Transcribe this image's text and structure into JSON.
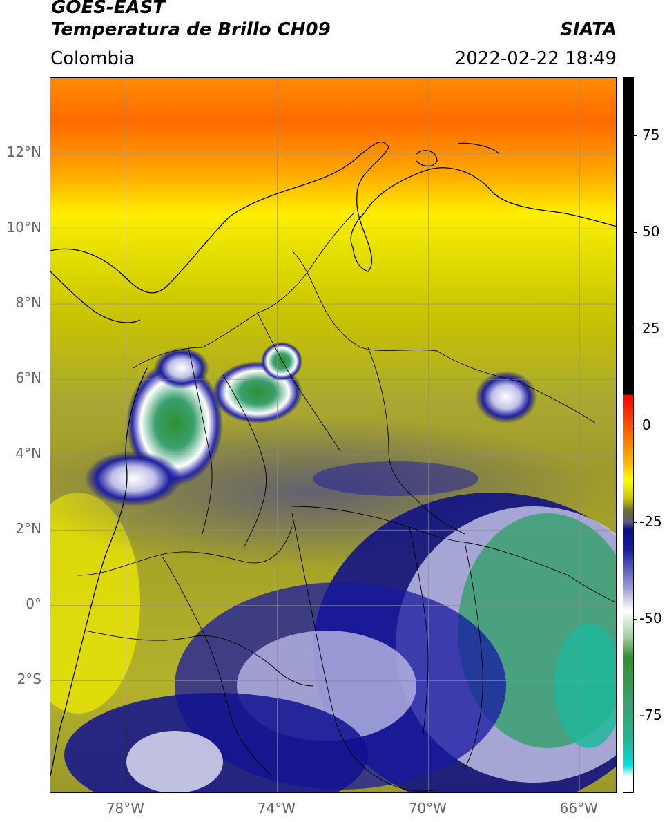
{
  "header": {
    "satellite": "GOES-EAST",
    "product": "Temperatura de Brillo CH09",
    "organization": "SIATA",
    "region": "Colombia",
    "timestamp": "2022-02-22 18:49"
  },
  "map": {
    "lon_range": [
      -80,
      -65
    ],
    "lat_range": [
      -5,
      14
    ],
    "lat_ticks": [
      {
        "value": 12,
        "label": "12°N"
      },
      {
        "value": 10,
        "label": "10°N"
      },
      {
        "value": 8,
        "label": "8°N"
      },
      {
        "value": 6,
        "label": "6°N"
      },
      {
        "value": 4,
        "label": "4°N"
      },
      {
        "value": 2,
        "label": "2°N"
      },
      {
        "value": 0,
        "label": "0°"
      },
      {
        "value": -2,
        "label": "2°S"
      }
    ],
    "lon_ticks": [
      {
        "value": -78,
        "label": "78°W"
      },
      {
        "value": -74,
        "label": "74°W"
      },
      {
        "value": -70,
        "label": "70°W"
      },
      {
        "value": -66,
        "label": "66°W"
      }
    ]
  },
  "colorbar": {
    "range": [
      -95,
      90
    ],
    "ticks": [
      {
        "value": 75,
        "label": "75"
      },
      {
        "value": 50,
        "label": "50"
      },
      {
        "value": 25,
        "label": "25"
      },
      {
        "value": 0,
        "label": "0"
      },
      {
        "value": -25,
        "label": "-25"
      },
      {
        "value": -50,
        "label": "-50"
      },
      {
        "value": -75,
        "label": "-75"
      }
    ],
    "stops": [
      {
        "value": 90,
        "color": "#000000"
      },
      {
        "value": 8,
        "color": "#000000"
      },
      {
        "value": 7.9,
        "color": "#ff0000"
      },
      {
        "value": -2,
        "color": "#ff6a00"
      },
      {
        "value": -10,
        "color": "#ffbb00"
      },
      {
        "value": -14,
        "color": "#ffff00"
      },
      {
        "value": -19,
        "color": "#c9c400"
      },
      {
        "value": -22,
        "color": "#6f6e34"
      },
      {
        "value": -25,
        "color": "#5a5a78"
      },
      {
        "value": -27,
        "color": "#0b0b8a"
      },
      {
        "value": -32,
        "color": "#1a1aa0"
      },
      {
        "value": -42,
        "color": "#9b9bd2"
      },
      {
        "value": -48,
        "color": "#ffffff"
      },
      {
        "value": -55,
        "color": "#9ccc9c"
      },
      {
        "value": -60,
        "color": "#2f8f2f"
      },
      {
        "value": -72,
        "color": "#3aa070"
      },
      {
        "value": -82,
        "color": "#1fb89a"
      },
      {
        "value": -88,
        "color": "#00e0e0"
      },
      {
        "value": -91,
        "color": "#ffffff"
      },
      {
        "value": -95,
        "color": "#ffffff"
      }
    ]
  }
}
